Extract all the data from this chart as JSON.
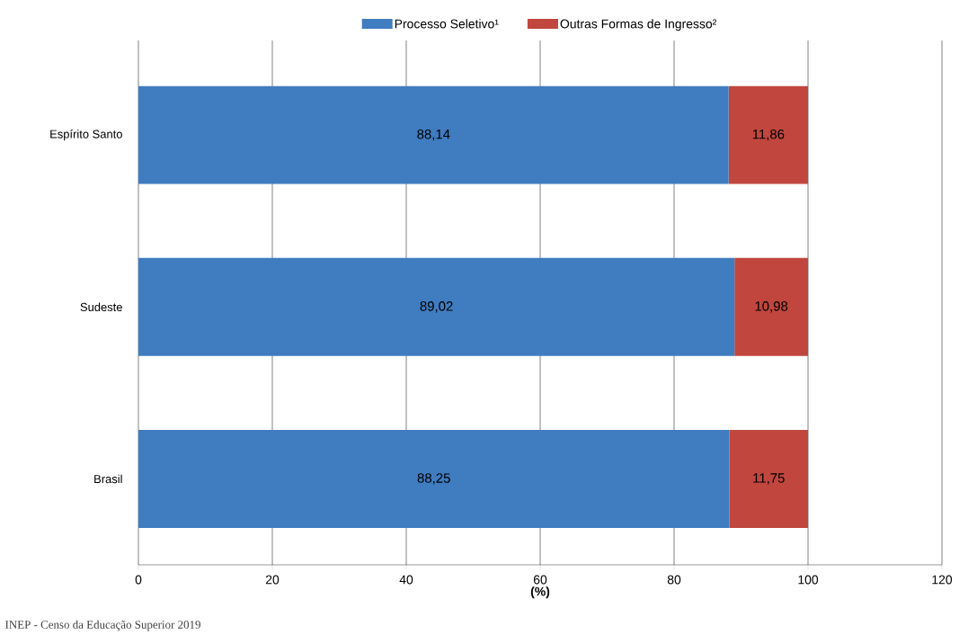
{
  "chart_data": {
    "type": "bar",
    "orientation": "horizontal",
    "stacked": true,
    "categories": [
      "Espírito Santo",
      "Sudeste",
      "Brasil"
    ],
    "series": [
      {
        "name": "Processo Seletivo¹",
        "color": "#3f7cc0",
        "values": [
          88.14,
          89.02,
          88.25
        ],
        "value_labels": [
          "88,14",
          "89,02",
          "88,25"
        ]
      },
      {
        "name": "Outras Formas de Ingresso²",
        "color": "#c0463e",
        "values": [
          11.86,
          10.98,
          11.75
        ],
        "value_labels": [
          "11,86",
          "10,98",
          "11,75"
        ]
      }
    ],
    "xlim": [
      0,
      120
    ],
    "xticks": [
      0,
      20,
      40,
      60,
      80,
      100,
      120
    ],
    "xlabel": "(%)",
    "grid": "x",
    "legend": "top",
    "annotations": [
      "INEP - Censo da Educação Superior 2019"
    ]
  }
}
